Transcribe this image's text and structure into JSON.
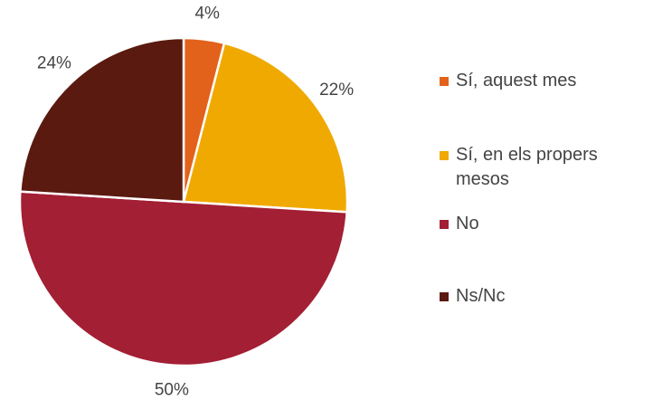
{
  "chart_data": {
    "type": "pie",
    "categories": [
      "Sí, aquest mes",
      "Sí, en els propers mesos",
      "No",
      "Ns/Nc"
    ],
    "values": [
      4,
      22,
      50,
      24
    ],
    "value_labels": [
      "4%",
      "22%",
      "50%",
      "24%"
    ],
    "colors": [
      "#e2621b",
      "#f0a900",
      "#a31f34",
      "#5a1a0f"
    ],
    "legend": "right"
  }
}
